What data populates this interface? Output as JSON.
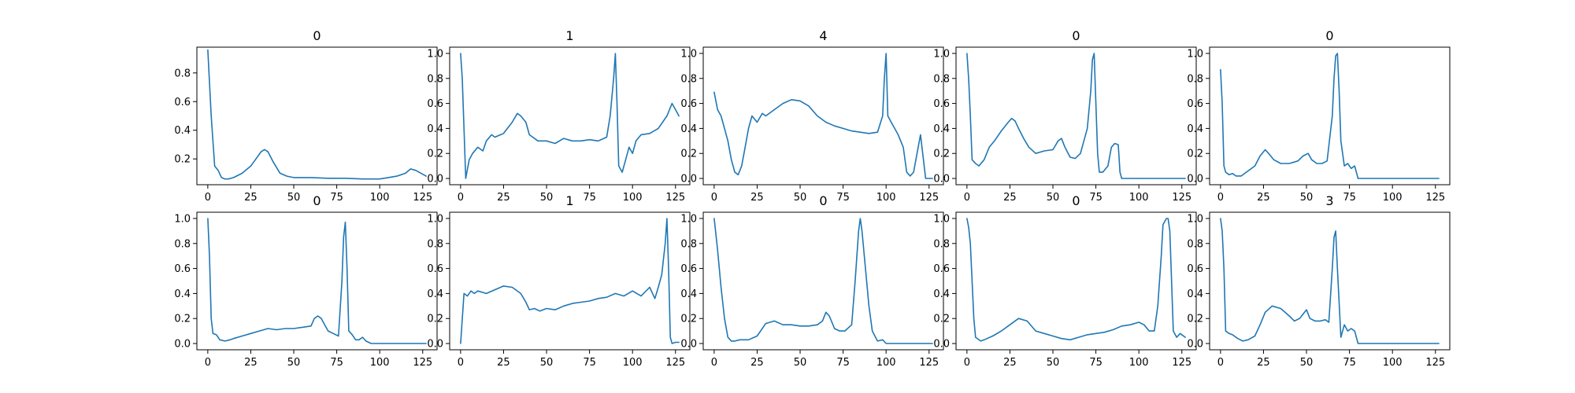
{
  "chart_data": [
    {
      "type": "line",
      "title": "0",
      "xlim": [
        -6.35,
        133.35
      ],
      "ylim": [
        0.02,
        0.98
      ],
      "xticks": [
        0,
        25,
        50,
        75,
        100,
        125
      ],
      "yticks": [
        0.2,
        0.4,
        0.6,
        0.8
      ],
      "ytick_labels": [
        "0.2",
        "0.4",
        "0.6",
        "0.8"
      ],
      "x": [
        0,
        2,
        4,
        6,
        8,
        10,
        12,
        15,
        20,
        25,
        28,
        31,
        33,
        35,
        38,
        42,
        46,
        50,
        60,
        70,
        80,
        90,
        100,
        105,
        110,
        115,
        118,
        121,
        124,
        127
      ],
      "y": [
        0.96,
        0.5,
        0.15,
        0.12,
        0.07,
        0.06,
        0.06,
        0.07,
        0.1,
        0.15,
        0.2,
        0.25,
        0.265,
        0.25,
        0.18,
        0.1,
        0.08,
        0.07,
        0.07,
        0.065,
        0.065,
        0.06,
        0.06,
        0.07,
        0.08,
        0.1,
        0.13,
        0.12,
        0.1,
        0.08
      ]
    },
    {
      "type": "line",
      "title": "1",
      "xlim": [
        -6.35,
        133.35
      ],
      "ylim": [
        -0.05,
        1.05
      ],
      "xticks": [
        0,
        25,
        50,
        75,
        100,
        125
      ],
      "yticks": [
        0,
        0.2,
        0.4,
        0.6,
        0.8,
        1.0
      ],
      "ytick_labels": [
        "0.0",
        "0.2",
        "0.4",
        "0.6",
        "0.8",
        "1.0"
      ],
      "x": [
        0,
        1,
        3,
        5,
        7,
        10,
        13,
        15,
        18,
        20,
        25,
        30,
        33,
        35,
        38,
        40,
        45,
        50,
        55,
        60,
        65,
        70,
        75,
        80,
        85,
        87,
        89,
        90,
        91,
        92,
        94,
        96,
        98,
        100,
        102,
        105,
        110,
        115,
        120,
        123,
        125,
        127
      ],
      "y": [
        1.0,
        0.8,
        0.0,
        0.15,
        0.2,
        0.25,
        0.22,
        0.3,
        0.35,
        0.33,
        0.36,
        0.45,
        0.52,
        0.5,
        0.45,
        0.35,
        0.3,
        0.3,
        0.28,
        0.32,
        0.3,
        0.3,
        0.31,
        0.3,
        0.33,
        0.5,
        0.8,
        1.0,
        0.6,
        0.1,
        0.05,
        0.15,
        0.25,
        0.2,
        0.3,
        0.35,
        0.36,
        0.4,
        0.5,
        0.6,
        0.55,
        0.5
      ]
    },
    {
      "type": "line",
      "title": "4",
      "xlim": [
        -6.35,
        133.35
      ],
      "ylim": [
        -0.05,
        1.05
      ],
      "xticks": [
        0,
        25,
        50,
        75,
        100,
        125
      ],
      "yticks": [
        0,
        0.2,
        0.4,
        0.6,
        0.8,
        1.0
      ],
      "ytick_labels": [
        "0.0",
        "0.2",
        "0.4",
        "0.6",
        "0.8",
        "1.0"
      ],
      "x": [
        0,
        2,
        4,
        6,
        8,
        10,
        12,
        14,
        16,
        18,
        20,
        22,
        25,
        28,
        30,
        35,
        40,
        45,
        50,
        55,
        60,
        65,
        70,
        75,
        80,
        85,
        90,
        95,
        98,
        99,
        100,
        101,
        103,
        105,
        107,
        110,
        112,
        114,
        116,
        118,
        120,
        123,
        127
      ],
      "y": [
        0.69,
        0.55,
        0.5,
        0.4,
        0.3,
        0.15,
        0.05,
        0.03,
        0.1,
        0.25,
        0.4,
        0.5,
        0.45,
        0.52,
        0.5,
        0.55,
        0.6,
        0.63,
        0.62,
        0.58,
        0.5,
        0.45,
        0.42,
        0.4,
        0.38,
        0.37,
        0.36,
        0.37,
        0.5,
        0.8,
        1.0,
        0.5,
        0.45,
        0.4,
        0.35,
        0.25,
        0.05,
        0.02,
        0.05,
        0.2,
        0.35,
        0.0,
        0.0
      ]
    },
    {
      "type": "line",
      "title": "0",
      "xlim": [
        -6.35,
        133.35
      ],
      "ylim": [
        -0.05,
        1.05
      ],
      "xticks": [
        0,
        25,
        50,
        75,
        100,
        125
      ],
      "yticks": [
        0,
        0.2,
        0.4,
        0.6,
        0.8,
        1.0
      ],
      "ytick_labels": [
        "0.0",
        "0.2",
        "0.4",
        "0.6",
        "0.8",
        "1.0"
      ],
      "x": [
        0,
        1,
        2,
        3,
        5,
        7,
        10,
        13,
        16,
        20,
        24,
        26,
        28,
        30,
        33,
        36,
        40,
        45,
        50,
        53,
        55,
        57,
        60,
        63,
        66,
        70,
        72,
        73,
        74,
        75,
        76,
        77,
        79,
        82,
        84,
        86,
        88,
        89,
        90,
        95,
        100,
        110,
        120,
        127
      ],
      "y": [
        1.0,
        0.8,
        0.5,
        0.15,
        0.12,
        0.1,
        0.15,
        0.25,
        0.3,
        0.38,
        0.45,
        0.48,
        0.46,
        0.4,
        0.32,
        0.25,
        0.2,
        0.22,
        0.23,
        0.3,
        0.32,
        0.25,
        0.17,
        0.16,
        0.2,
        0.4,
        0.7,
        0.95,
        1.0,
        0.6,
        0.2,
        0.05,
        0.05,
        0.1,
        0.25,
        0.28,
        0.27,
        0.05,
        0.0,
        0.0,
        0.0,
        0.0,
        0.0,
        0.0
      ]
    },
    {
      "type": "line",
      "title": "0",
      "xlim": [
        -6.35,
        133.35
      ],
      "ylim": [
        -0.05,
        1.05
      ],
      "xticks": [
        0,
        25,
        50,
        75,
        100,
        125
      ],
      "yticks": [
        0,
        0.2,
        0.4,
        0.6,
        0.8,
        1.0
      ],
      "ytick_labels": [
        "0.0",
        "0.2",
        "0.4",
        "0.6",
        "0.8",
        "1.0"
      ],
      "x": [
        0,
        1,
        2,
        3,
        5,
        7,
        9,
        12,
        15,
        20,
        23,
        26,
        28,
        31,
        35,
        40,
        45,
        48,
        51,
        53,
        56,
        59,
        62,
        65,
        66,
        67,
        68,
        69,
        70,
        72,
        74,
        76,
        78,
        80,
        90,
        100,
        110,
        120,
        127
      ],
      "y": [
        0.87,
        0.6,
        0.1,
        0.05,
        0.03,
        0.04,
        0.02,
        0.02,
        0.05,
        0.1,
        0.18,
        0.23,
        0.2,
        0.15,
        0.12,
        0.12,
        0.14,
        0.18,
        0.2,
        0.15,
        0.12,
        0.12,
        0.14,
        0.5,
        0.8,
        0.98,
        1.0,
        0.7,
        0.3,
        0.1,
        0.12,
        0.08,
        0.1,
        0.0,
        0.0,
        0.0,
        0.0,
        0.0,
        0.0
      ]
    },
    {
      "type": "line",
      "title": "0",
      "xlim": [
        -6.35,
        133.35
      ],
      "ylim": [
        -0.05,
        1.05
      ],
      "xticks": [
        0,
        25,
        50,
        75,
        100,
        125
      ],
      "yticks": [
        0,
        0.2,
        0.4,
        0.6,
        0.8,
        1.0
      ],
      "ytick_labels": [
        "0.0",
        "0.2",
        "0.4",
        "0.6",
        "0.8",
        "1.0"
      ],
      "x": [
        0,
        1,
        2,
        3,
        5,
        7,
        10,
        13,
        15,
        20,
        25,
        30,
        35,
        40,
        45,
        50,
        55,
        60,
        62,
        64,
        66,
        68,
        70,
        73,
        76,
        78,
        79,
        80,
        81,
        82,
        84,
        86,
        88,
        90,
        92,
        95,
        100,
        110,
        120,
        127
      ],
      "y": [
        1.0,
        0.7,
        0.2,
        0.08,
        0.07,
        0.03,
        0.02,
        0.03,
        0.04,
        0.06,
        0.08,
        0.1,
        0.12,
        0.11,
        0.12,
        0.12,
        0.13,
        0.14,
        0.2,
        0.22,
        0.2,
        0.15,
        0.1,
        0.08,
        0.06,
        0.5,
        0.85,
        0.97,
        0.6,
        0.1,
        0.07,
        0.03,
        0.03,
        0.05,
        0.02,
        0.0,
        0.0,
        0.0,
        0.0,
        0.0
      ]
    },
    {
      "type": "line",
      "title": "1",
      "xlim": [
        -6.35,
        133.35
      ],
      "ylim": [
        -0.05,
        1.05
      ],
      "xticks": [
        0,
        25,
        50,
        75,
        100,
        125
      ],
      "yticks": [
        0,
        0.2,
        0.4,
        0.6,
        0.8,
        1.0
      ],
      "ytick_labels": [
        "0.0",
        "0.2",
        "0.4",
        "0.6",
        "0.8",
        "1.0"
      ],
      "x": [
        0,
        2,
        4,
        6,
        8,
        10,
        15,
        20,
        25,
        30,
        35,
        38,
        40,
        43,
        46,
        50,
        55,
        60,
        65,
        70,
        75,
        80,
        85,
        90,
        95,
        100,
        105,
        110,
        113,
        115,
        117,
        119,
        120,
        121,
        122,
        123,
        125,
        127
      ],
      "y": [
        0.0,
        0.4,
        0.38,
        0.42,
        0.4,
        0.42,
        0.4,
        0.43,
        0.46,
        0.45,
        0.4,
        0.33,
        0.27,
        0.28,
        0.26,
        0.28,
        0.27,
        0.3,
        0.32,
        0.33,
        0.34,
        0.36,
        0.37,
        0.4,
        0.38,
        0.42,
        0.38,
        0.45,
        0.36,
        0.45,
        0.55,
        0.8,
        1.0,
        0.6,
        0.05,
        0.0,
        0.01,
        0.01
      ]
    },
    {
      "type": "line",
      "title": "0",
      "xlim": [
        -6.35,
        133.35
      ],
      "ylim": [
        -0.05,
        1.05
      ],
      "xticks": [
        0,
        25,
        50,
        75,
        100,
        125
      ],
      "yticks": [
        0,
        0.2,
        0.4,
        0.6,
        0.8,
        1.0
      ],
      "ytick_labels": [
        "0.0",
        "0.2",
        "0.4",
        "0.6",
        "0.8",
        "1.0"
      ],
      "x": [
        0,
        2,
        4,
        6,
        8,
        10,
        12,
        15,
        20,
        25,
        30,
        35,
        40,
        45,
        50,
        55,
        60,
        63,
        65,
        67,
        70,
        73,
        76,
        80,
        82,
        84,
        85,
        86,
        88,
        90,
        92,
        95,
        98,
        100,
        110,
        120,
        127
      ],
      "y": [
        1.0,
        0.75,
        0.45,
        0.2,
        0.05,
        0.02,
        0.02,
        0.03,
        0.03,
        0.06,
        0.16,
        0.18,
        0.15,
        0.15,
        0.14,
        0.14,
        0.15,
        0.18,
        0.25,
        0.22,
        0.12,
        0.1,
        0.1,
        0.15,
        0.5,
        0.9,
        1.0,
        0.9,
        0.6,
        0.3,
        0.1,
        0.02,
        0.03,
        0.0,
        0.0,
        0.0,
        0.0
      ]
    },
    {
      "type": "line",
      "title": "0",
      "xlim": [
        -6.35,
        133.35
      ],
      "ylim": [
        -0.05,
        1.05
      ],
      "xticks": [
        0,
        25,
        50,
        75,
        100,
        125
      ],
      "yticks": [
        0,
        0.2,
        0.4,
        0.6,
        0.8,
        1.0
      ],
      "ytick_labels": [
        "0.0",
        "0.2",
        "0.4",
        "0.6",
        "0.8",
        "1.0"
      ],
      "x": [
        0,
        1,
        2,
        3,
        4,
        5,
        8,
        10,
        15,
        20,
        25,
        30,
        35,
        40,
        45,
        50,
        55,
        60,
        65,
        70,
        75,
        80,
        85,
        90,
        95,
        100,
        103,
        106,
        109,
        111,
        113,
        114,
        116,
        117,
        118,
        119,
        120,
        122,
        124,
        127
      ],
      "y": [
        1.0,
        0.93,
        0.8,
        0.5,
        0.2,
        0.05,
        0.02,
        0.03,
        0.06,
        0.1,
        0.15,
        0.2,
        0.18,
        0.1,
        0.08,
        0.06,
        0.04,
        0.03,
        0.05,
        0.07,
        0.08,
        0.09,
        0.11,
        0.14,
        0.15,
        0.17,
        0.15,
        0.1,
        0.1,
        0.3,
        0.7,
        0.95,
        1.0,
        1.0,
        0.9,
        0.5,
        0.1,
        0.05,
        0.08,
        0.05
      ]
    },
    {
      "type": "line",
      "title": "3",
      "xlim": [
        -6.35,
        133.35
      ],
      "ylim": [
        -0.05,
        1.05
      ],
      "xticks": [
        0,
        25,
        50,
        75,
        100,
        125
      ],
      "yticks": [
        0,
        0.2,
        0.4,
        0.6,
        0.8,
        1.0
      ],
      "ytick_labels": [
        "0.0",
        "0.2",
        "0.4",
        "0.6",
        "0.8",
        "1.0"
      ],
      "x": [
        0,
        1,
        2,
        3,
        5,
        7,
        10,
        13,
        16,
        20,
        23,
        26,
        30,
        35,
        40,
        43,
        46,
        50,
        52,
        55,
        58,
        61,
        63,
        65,
        66,
        67,
        68,
        70,
        72,
        74,
        76,
        78,
        80,
        85,
        90,
        100,
        110,
        120,
        127
      ],
      "y": [
        1.0,
        0.9,
        0.6,
        0.1,
        0.08,
        0.07,
        0.04,
        0.02,
        0.03,
        0.06,
        0.15,
        0.25,
        0.3,
        0.28,
        0.22,
        0.18,
        0.2,
        0.27,
        0.2,
        0.18,
        0.18,
        0.19,
        0.17,
        0.6,
        0.85,
        0.9,
        0.6,
        0.05,
        0.15,
        0.1,
        0.12,
        0.1,
        0.0,
        0.0,
        0.0,
        0.0,
        0.0,
        0.0,
        0.0
      ]
    }
  ]
}
